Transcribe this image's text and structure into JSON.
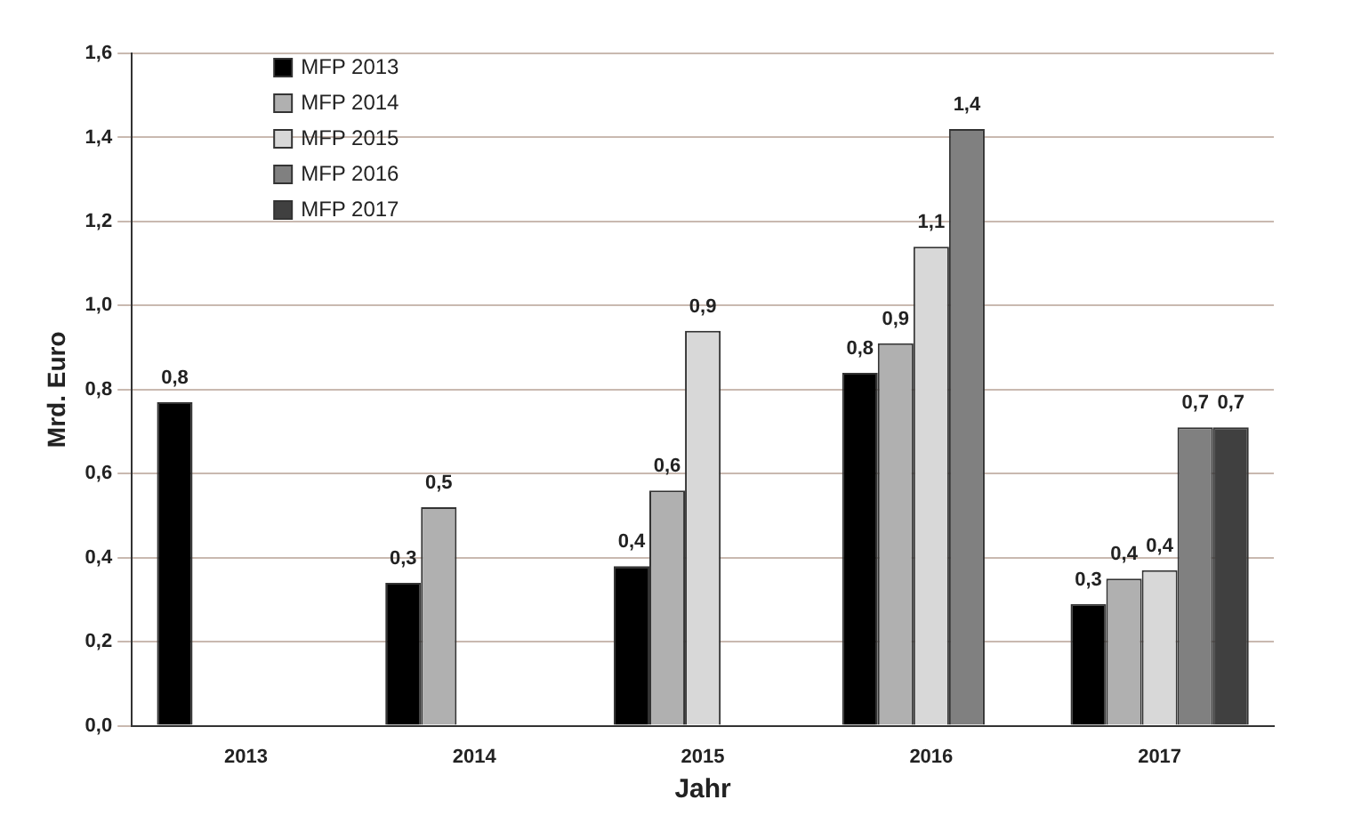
{
  "chart_data": {
    "type": "bar",
    "xlabel": "Jahr",
    "ylabel": "Mrd. Euro",
    "categories": [
      "2013",
      "2014",
      "2015",
      "2016",
      "2017"
    ],
    "series": [
      {
        "name": "MFP 2013",
        "color": "#000000",
        "values": [
          0.77,
          0.34,
          0.38,
          0.84,
          0.29
        ],
        "value_labels": [
          "0,8",
          "0,3",
          "0,4",
          "0,8",
          "0,3"
        ]
      },
      {
        "name": "MFP 2014",
        "color": "#b0b0b0",
        "values": [
          null,
          0.52,
          0.56,
          0.91,
          0.35
        ],
        "value_labels": [
          null,
          "0,5",
          "0,6",
          "0,9",
          "0,4"
        ]
      },
      {
        "name": "MFP 2015",
        "color": "#d8d8d8",
        "values": [
          null,
          null,
          0.94,
          1.14,
          0.37
        ],
        "value_labels": [
          null,
          null,
          "0,9",
          "1,1",
          "0,4"
        ]
      },
      {
        "name": "MFP 2016",
        "color": "#808080",
        "values": [
          null,
          null,
          null,
          1.42,
          0.71
        ],
        "value_labels": [
          null,
          null,
          null,
          "1,4",
          "0,7"
        ]
      },
      {
        "name": "MFP 2017",
        "color": "#404040",
        "values": [
          null,
          null,
          null,
          null,
          0.71
        ],
        "value_labels": [
          null,
          null,
          null,
          null,
          "0,7"
        ]
      }
    ],
    "ylim": [
      0,
      1.6
    ],
    "yticks": [
      {
        "value": 0,
        "label": "0,0"
      },
      {
        "value": 0.2,
        "label": "0,2"
      },
      {
        "value": 0.4,
        "label": "0,4"
      },
      {
        "value": 0.6,
        "label": "0,6"
      },
      {
        "value": 0.8,
        "label": "0,8"
      },
      {
        "value": 1,
        "label": "1,0"
      },
      {
        "value": 1.2,
        "label": "1,2"
      },
      {
        "value": 1.4,
        "label": "1,4"
      },
      {
        "value": 1.6,
        "label": "1,6"
      }
    ],
    "grid": "y",
    "legend": "top left"
  }
}
